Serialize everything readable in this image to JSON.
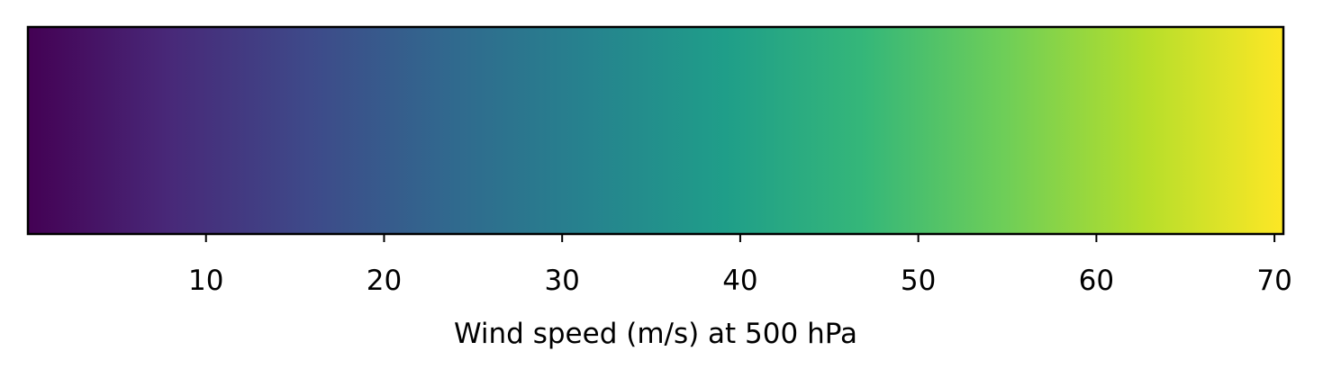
{
  "chart_data": {
    "type": "colorbar",
    "colormap": "viridis",
    "orientation": "horizontal",
    "range": [
      0,
      70.5
    ],
    "ticks": [
      10,
      20,
      30,
      40,
      50,
      60,
      70
    ],
    "tick_labels": [
      "10",
      "20",
      "30",
      "40",
      "50",
      "60",
      "70"
    ],
    "xlabel": "Wind speed (m/s) at 500 hPa",
    "gradient_stops": [
      "#440154",
      "#482878",
      "#3e4989",
      "#31688e",
      "#26828e",
      "#1f9e89",
      "#35b779",
      "#6ece58",
      "#b5de2b",
      "#fde725"
    ],
    "frame_color": "#000000"
  }
}
